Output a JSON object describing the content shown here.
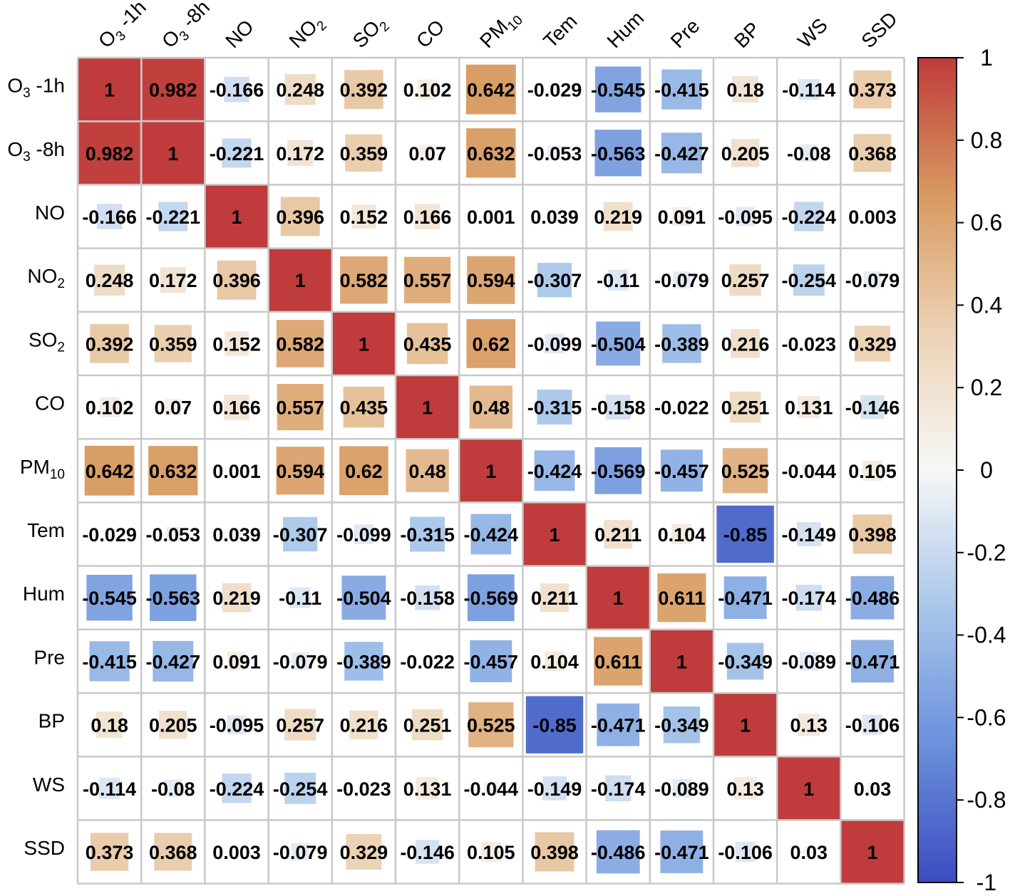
{
  "chart_data": {
    "type": "heatmap",
    "variables": [
      {
        "base": "O",
        "sub": "3",
        "suffix": " -1h"
      },
      {
        "base": "O",
        "sub": "3",
        "suffix": " -8h"
      },
      {
        "base": "NO",
        "sub": "",
        "suffix": ""
      },
      {
        "base": "NO",
        "sub": "2",
        "suffix": ""
      },
      {
        "base": "SO",
        "sub": "2",
        "suffix": ""
      },
      {
        "base": "CO",
        "sub": "",
        "suffix": ""
      },
      {
        "base": "PM",
        "sub": "10",
        "suffix": ""
      },
      {
        "base": "Tem",
        "sub": "",
        "suffix": ""
      },
      {
        "base": "Hum",
        "sub": "",
        "suffix": ""
      },
      {
        "base": "Pre",
        "sub": "",
        "suffix": ""
      },
      {
        "base": "BP",
        "sub": "",
        "suffix": ""
      },
      {
        "base": "WS",
        "sub": "",
        "suffix": ""
      },
      {
        "base": "SSD",
        "sub": "",
        "suffix": ""
      }
    ],
    "matrix": [
      [
        "1",
        "0.982",
        "-0.166",
        "0.248",
        "0.392",
        "0.102",
        "0.642",
        "-0.029",
        "-0.545",
        "-0.415",
        "0.18",
        "-0.114",
        "0.373"
      ],
      [
        "0.982",
        "1",
        "-0.221",
        "0.172",
        "0.359",
        "0.07",
        "0.632",
        "-0.053",
        "-0.563",
        "-0.427",
        "0.205",
        "-0.08",
        "0.368"
      ],
      [
        "-0.166",
        "-0.221",
        "1",
        "0.396",
        "0.152",
        "0.166",
        "0.001",
        "0.039",
        "0.219",
        "0.091",
        "-0.095",
        "-0.224",
        "0.003"
      ],
      [
        "0.248",
        "0.172",
        "0.396",
        "1",
        "0.582",
        "0.557",
        "0.594",
        "-0.307",
        "-0.11",
        "-0.079",
        "0.257",
        "-0.254",
        "-0.079"
      ],
      [
        "0.392",
        "0.359",
        "0.152",
        "0.582",
        "1",
        "0.435",
        "0.62",
        "-0.099",
        "-0.504",
        "-0.389",
        "0.216",
        "-0.023",
        "0.329"
      ],
      [
        "0.102",
        "0.07",
        "0.166",
        "0.557",
        "0.435",
        "1",
        "0.48",
        "-0.315",
        "-0.158",
        "-0.022",
        "0.251",
        "0.131",
        "-0.146"
      ],
      [
        "0.642",
        "0.632",
        "0.001",
        "0.594",
        "0.62",
        "0.48",
        "1",
        "-0.424",
        "-0.569",
        "-0.457",
        "0.525",
        "-0.044",
        "0.105"
      ],
      [
        "-0.029",
        "-0.053",
        "0.039",
        "-0.307",
        "-0.099",
        "-0.315",
        "-0.424",
        "1",
        "0.211",
        "0.104",
        "-0.85",
        "-0.149",
        "0.398"
      ],
      [
        "-0.545",
        "-0.563",
        "0.219",
        "-0.11",
        "-0.504",
        "-0.158",
        "-0.569",
        "0.211",
        "1",
        "0.611",
        "-0.471",
        "-0.174",
        "-0.486"
      ],
      [
        "-0.415",
        "-0.427",
        "0.091",
        "-0.079",
        "-0.389",
        "-0.022",
        "-0.457",
        "0.104",
        "0.611",
        "1",
        "-0.349",
        "-0.089",
        "-0.471"
      ],
      [
        "0.18",
        "0.205",
        "-0.095",
        "0.257",
        "0.216",
        "0.251",
        "0.525",
        "-0.85",
        "-0.471",
        "-0.349",
        "1",
        "0.13",
        "-0.106"
      ],
      [
        "-0.114",
        "-0.08",
        "-0.224",
        "-0.254",
        "-0.023",
        "0.131",
        "-0.044",
        "-0.149",
        "-0.174",
        "-0.089",
        "0.13",
        "1",
        "0.03"
      ],
      [
        "0.373",
        "0.368",
        "0.003",
        "-0.079",
        "0.329",
        "-0.146",
        "0.105",
        "0.398",
        "-0.486",
        "-0.471",
        "-0.106",
        "0.03",
        "1"
      ]
    ],
    "value_range": [
      -1,
      1
    ],
    "colorbar": {
      "ticks": [
        "1",
        "0.8",
        "0.6",
        "0.4",
        "0.2",
        "0",
        "-0.2",
        "-0.4",
        "-0.6",
        "-0.8",
        "-1"
      ],
      "colors": {
        "negative": "#3b4cc0",
        "neutral": "#f7f7f7",
        "positive": "#c03b3b"
      },
      "stops": [
        "#3b4cc0",
        "#6b90dc",
        "#a8c6ea",
        "#f7f7f7",
        "#ecd3b5",
        "#d89a60",
        "#c03b3b"
      ]
    },
    "grid": true
  }
}
